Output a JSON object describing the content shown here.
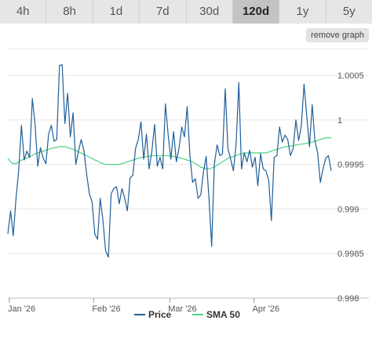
{
  "tabs": [
    {
      "label": "4h",
      "active": false
    },
    {
      "label": "8h",
      "active": false
    },
    {
      "label": "1d",
      "active": false
    },
    {
      "label": "7d",
      "active": false
    },
    {
      "label": "30d",
      "active": false
    },
    {
      "label": "120d",
      "active": true
    },
    {
      "label": "1y",
      "active": false
    },
    {
      "label": "5y",
      "active": false
    }
  ],
  "remove_graph_label": "remove graph",
  "chart_data": {
    "type": "line",
    "ylim": [
      0.998,
      1.0008
    ],
    "y_ticks": [
      {
        "label": "0.998",
        "value": 0.998
      },
      {
        "label": "0.9985",
        "value": 0.9985
      },
      {
        "label": "0.999",
        "value": 0.999
      },
      {
        "label": "0.9995",
        "value": 0.9995
      },
      {
        "label": "1",
        "value": 1.0
      },
      {
        "label": "1.0005",
        "value": 1.0005
      }
    ],
    "x_ticks": [
      {
        "label": "Jan '26",
        "index": 0
      },
      {
        "label": "Feb '26",
        "index": 31
      },
      {
        "label": "Mar '26",
        "index": 59
      },
      {
        "label": "Apr '26",
        "index": 90
      }
    ],
    "x_count": 120,
    "grid": true,
    "legend_position": "bottom-center",
    "series": [
      {
        "name": "Price",
        "color": "#1f5f99",
        "values": [
          0.99872,
          0.99898,
          0.9987,
          0.99912,
          0.99943,
          0.99994,
          0.99955,
          0.99965,
          0.99958,
          1.00024,
          0.99996,
          0.99948,
          0.99969,
          0.99957,
          0.99951,
          0.99984,
          0.99994,
          0.99976,
          0.99978,
          1.00061,
          1.00062,
          0.99996,
          1.0003,
          0.99981,
          1.00008,
          0.9995,
          0.99965,
          0.99978,
          0.99966,
          0.99939,
          0.99917,
          0.99908,
          0.99872,
          0.99866,
          0.99912,
          0.99887,
          0.99853,
          0.99846,
          0.99917,
          0.99923,
          0.99925,
          0.99906,
          0.99923,
          0.99912,
          0.99898,
          0.99935,
          0.99938,
          0.99968,
          0.99978,
          0.99998,
          0.99956,
          0.99984,
          0.99945,
          0.99965,
          0.99995,
          0.99948,
          0.99958,
          0.99945,
          1.00018,
          0.99983,
          0.99956,
          0.99987,
          0.99953,
          0.99968,
          0.99992,
          0.99981,
          1.00015,
          0.9996,
          0.9993,
          0.99934,
          0.99912,
          0.99916,
          0.99942,
          0.99959,
          0.99913,
          0.99858,
          0.9995,
          0.99972,
          0.9996,
          0.99962,
          1.00035,
          0.99968,
          0.99956,
          0.99943,
          0.99972,
          1.00042,
          0.99945,
          0.99963,
          0.99953,
          0.99966,
          0.99947,
          0.99958,
          0.99926,
          0.99962,
          0.99945,
          0.99943,
          0.99932,
          0.99887,
          0.99958,
          0.9996,
          0.99992,
          0.99975,
          0.99983,
          0.99978,
          0.9996,
          0.99968,
          1.0,
          0.99977,
          0.99993,
          1.0004,
          1.00005,
          0.9997,
          1.00017,
          0.99977,
          0.99963,
          0.9993,
          0.99945,
          0.99957,
          0.9996,
          0.99943
        ]
      },
      {
        "name": "SMA 50",
        "color": "#4ed183",
        "values": [
          0.99957,
          0.99953,
          0.99951,
          0.99951,
          0.99953,
          0.99955,
          0.99956,
          0.99957,
          0.99959,
          0.9996,
          0.99962,
          0.99963,
          0.99964,
          0.99965,
          0.99966,
          0.99967,
          0.99968,
          0.99969,
          0.99969,
          0.9997,
          0.9997,
          0.9997,
          0.99969,
          0.99968,
          0.99967,
          0.99966,
          0.99964,
          0.99963,
          0.99961,
          0.9996,
          0.99958,
          0.99957,
          0.99955,
          0.99954,
          0.99952,
          0.99951,
          0.9995,
          0.9995,
          0.9995,
          0.9995,
          0.9995,
          0.9995,
          0.99951,
          0.99952,
          0.99953,
          0.99954,
          0.99955,
          0.99956,
          0.99957,
          0.99958,
          0.99958,
          0.99959,
          0.99959,
          0.9996,
          0.9996,
          0.9996,
          0.9996,
          0.9996,
          0.9996,
          0.9996,
          0.99959,
          0.99959,
          0.99958,
          0.99958,
          0.99957,
          0.99956,
          0.99955,
          0.99954,
          0.99953,
          0.99951,
          0.99949,
          0.99947,
          0.99946,
          0.99945,
          0.99945,
          0.99946,
          0.99947,
          0.99949,
          0.99951,
          0.99953,
          0.99955,
          0.99957,
          0.99958,
          0.99959,
          0.9996,
          0.99961,
          0.99962,
          0.99963,
          0.99963,
          0.99963,
          0.99963,
          0.99963,
          0.99963,
          0.99963,
          0.99963,
          0.99963,
          0.99964,
          0.99965,
          0.99966,
          0.99967,
          0.99968,
          0.99969,
          0.9997,
          0.9997,
          0.99971,
          0.99971,
          0.99972,
          0.99972,
          0.99973,
          0.99973,
          0.99974,
          0.99974,
          0.99975,
          0.99976,
          0.99977,
          0.99978,
          0.99979,
          0.9998,
          0.9998,
          0.9998
        ]
      }
    ]
  }
}
